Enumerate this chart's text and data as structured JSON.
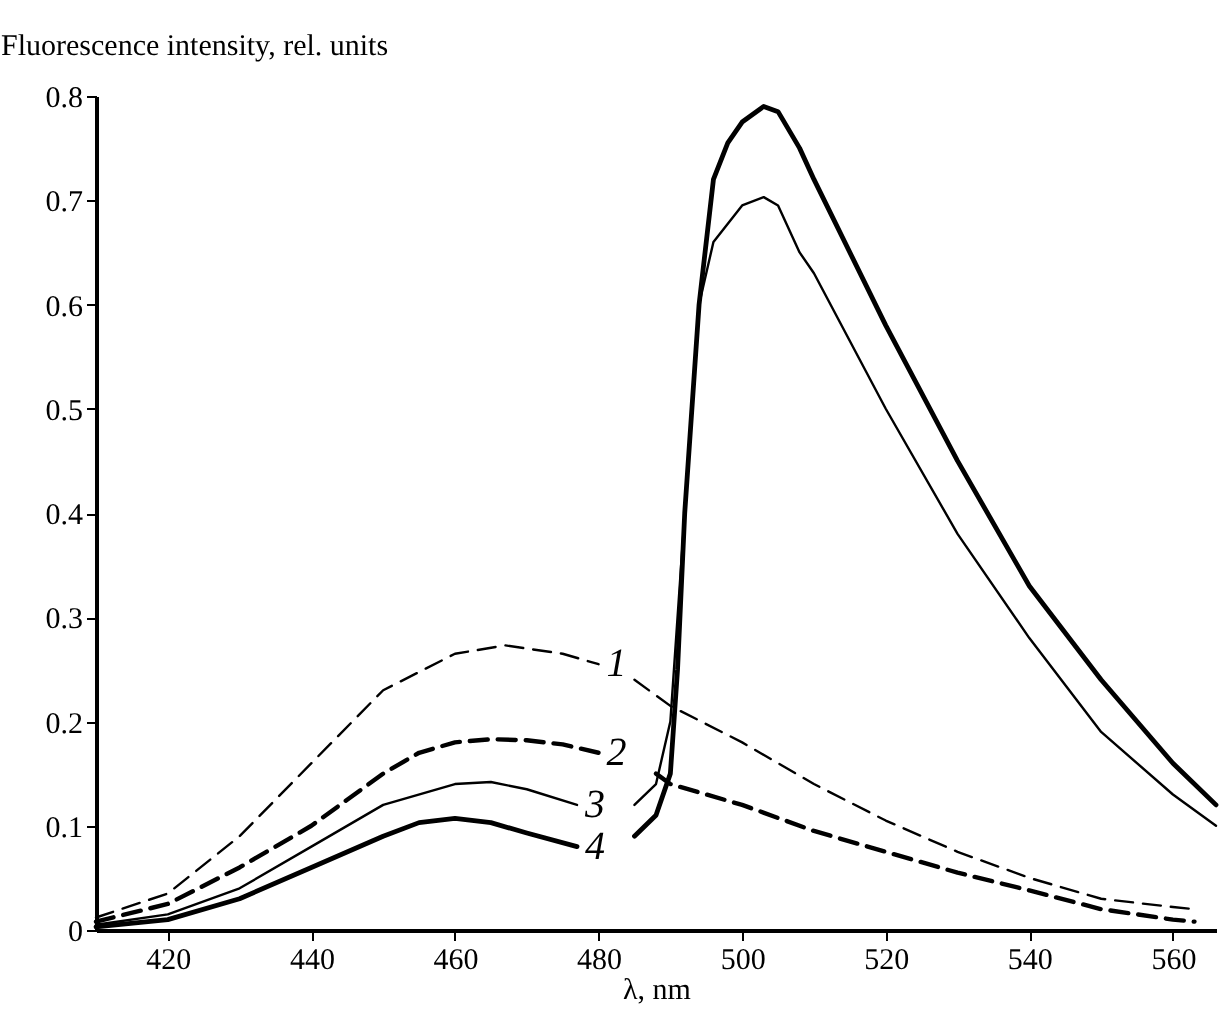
{
  "chart_data": {
    "type": "line",
    "ylabel": "Fluorescence intensity, rel. units",
    "xlabel": "λ, nm",
    "xlim": [
      410,
      566
    ],
    "xticks": [
      420,
      440,
      460,
      480,
      500,
      520,
      540,
      560
    ],
    "ylim": [
      0,
      0.8
    ],
    "yticks": [
      0,
      0.1,
      0.2,
      0.3,
      0.4,
      0.5,
      0.6,
      0.7,
      0.8
    ],
    "grid": false,
    "series": [
      {
        "name": "1",
        "color": "#000000",
        "line_style": "dashed",
        "x": [
          410,
          420,
          430,
          440,
          450,
          460,
          467,
          475,
          480,
          null,
          485,
          490,
          500,
          510,
          520,
          530,
          540,
          550,
          560,
          563
        ],
        "values": [
          0.012,
          0.035,
          0.09,
          0.16,
          0.23,
          0.265,
          0.273,
          0.265,
          0.255,
          null,
          0.24,
          0.215,
          0.18,
          0.14,
          0.105,
          0.075,
          0.05,
          0.03,
          0.022,
          0.02
        ]
      },
      {
        "name": "2",
        "color": "#000000",
        "line_style": "dashed",
        "x": [
          410,
          420,
          430,
          440,
          450,
          455,
          460,
          465,
          470,
          475,
          480,
          null,
          488,
          490,
          500,
          510,
          520,
          530,
          540,
          550,
          560,
          563
        ],
        "values": [
          0.008,
          0.025,
          0.06,
          0.1,
          0.15,
          0.17,
          0.18,
          0.183,
          0.182,
          0.178,
          0.17,
          null,
          0.15,
          0.14,
          0.12,
          0.095,
          0.075,
          0.055,
          0.038,
          0.02,
          0.01,
          0.008
        ]
      },
      {
        "name": "3",
        "color": "#000000",
        "line_style": "solid",
        "x": [
          410,
          420,
          430,
          440,
          450,
          460,
          465,
          470,
          477,
          null,
          485,
          488,
          490,
          492,
          494,
          496,
          500,
          503,
          505,
          508,
          510,
          520,
          530,
          540,
          550,
          560,
          566
        ],
        "values": [
          0.005,
          0.015,
          0.04,
          0.08,
          0.12,
          0.14,
          0.142,
          0.135,
          0.12,
          null,
          0.12,
          0.14,
          0.2,
          0.4,
          0.6,
          0.66,
          0.695,
          0.703,
          0.695,
          0.65,
          0.63,
          0.5,
          0.38,
          0.28,
          0.19,
          0.13,
          0.1
        ]
      },
      {
        "name": "4",
        "color": "#000000",
        "line_style": "solid",
        "x": [
          410,
          420,
          430,
          440,
          450,
          455,
          460,
          465,
          470,
          477,
          null,
          485,
          488,
          490,
          491,
          492,
          494,
          496,
          498,
          500,
          503,
          505,
          508,
          510,
          520,
          530,
          540,
          550,
          560,
          566
        ],
        "values": [
          0.003,
          0.01,
          0.03,
          0.06,
          0.09,
          0.103,
          0.107,
          0.103,
          0.093,
          0.08,
          null,
          0.09,
          0.11,
          0.15,
          0.25,
          0.4,
          0.6,
          0.72,
          0.755,
          0.775,
          0.79,
          0.785,
          0.75,
          0.72,
          0.58,
          0.45,
          0.33,
          0.24,
          0.16,
          0.12
        ]
      }
    ]
  }
}
